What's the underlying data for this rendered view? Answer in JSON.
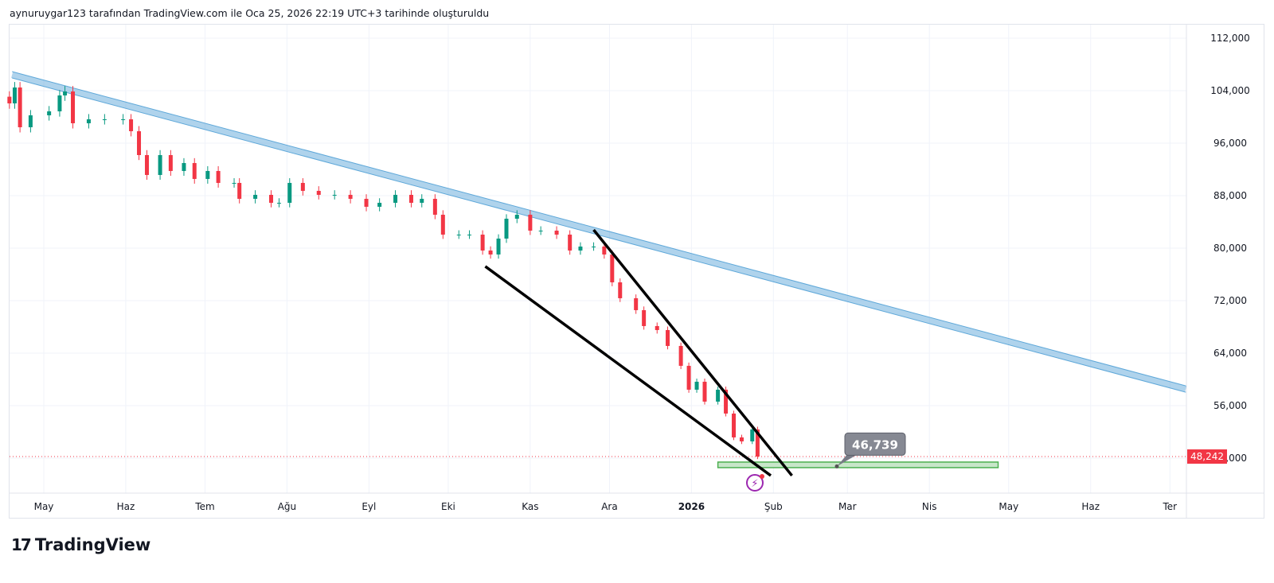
{
  "header": {
    "caption": "aynuruygar123 tarafından TradingView.com ile Oca 25, 2026 22:19 UTC+3 tarihinde oluşturuldu"
  },
  "branding": {
    "logo_text": "TradingView",
    "logo_mark": "17"
  },
  "colors": {
    "up": "#089981",
    "down": "#f23645",
    "channel": "#5fa8d9",
    "zone": "#4caf50",
    "grid": "#f0f3fa"
  },
  "chart_data": {
    "type": "candlestick",
    "x_origin": "2025-05-01",
    "x_unit": "days",
    "ylim": [
      40000,
      116000
    ],
    "y_ticks": [
      "112,000",
      "104,000",
      "96,000",
      "88,000",
      "80,000",
      "72,000",
      "64,000",
      "56,000",
      "48,000"
    ],
    "y_tick_values": [
      112000,
      104000,
      96000,
      88000,
      80000,
      72000,
      64000,
      56000,
      48000
    ],
    "x_ticks": [
      {
        "label": "May",
        "day": 0
      },
      {
        "label": "Haz",
        "day": 31
      },
      {
        "label": "Tem",
        "day": 61
      },
      {
        "label": "Ağu",
        "day": 92
      },
      {
        "label": "Eyl",
        "day": 123
      },
      {
        "label": "Eki",
        "day": 153
      },
      {
        "label": "Kas",
        "day": 184
      },
      {
        "label": "Ara",
        "day": 214
      },
      {
        "label": "2026",
        "day": 245
      },
      {
        "label": "Şub",
        "day": 276
      },
      {
        "label": "Mar",
        "day": 304
      },
      {
        "label": "Nis",
        "day": 335
      },
      {
        "label": "May",
        "day": 365
      },
      {
        "label": "Haz",
        "day": 396
      },
      {
        "label": "Ter",
        "day": 426
      }
    ],
    "closes": [
      [
        -13,
        102061
      ],
      [
        -11,
        104485
      ],
      [
        -9,
        98425
      ],
      [
        -5,
        100244
      ],
      [
        2,
        100850
      ],
      [
        6,
        103274
      ],
      [
        8,
        103880
      ],
      [
        11,
        99032
      ],
      [
        17,
        99638
      ],
      [
        23,
        99638
      ],
      [
        30,
        99638
      ],
      [
        33,
        97820
      ],
      [
        36,
        94184
      ],
      [
        39,
        91154
      ],
      [
        44,
        94184
      ],
      [
        48,
        91760
      ],
      [
        53,
        92972
      ],
      [
        57,
        90548
      ],
      [
        62,
        91760
      ],
      [
        66,
        89942
      ],
      [
        72,
        89942
      ],
      [
        74,
        87518
      ],
      [
        80,
        88124
      ],
      [
        86,
        86912
      ],
      [
        89,
        86912
      ],
      [
        93,
        89942
      ],
      [
        98,
        88730
      ],
      [
        104,
        88124
      ],
      [
        110,
        88124
      ],
      [
        116,
        87518
      ],
      [
        122,
        86306
      ],
      [
        127,
        86912
      ],
      [
        133,
        88124
      ],
      [
        139,
        86912
      ],
      [
        143,
        87518
      ],
      [
        148,
        85094
      ],
      [
        151,
        82064
      ],
      [
        157,
        82064
      ],
      [
        161,
        82064
      ],
      [
        166,
        79640
      ],
      [
        169,
        79034
      ],
      [
        172,
        81458
      ],
      [
        175,
        84488
      ],
      [
        179,
        85094
      ],
      [
        184,
        82670
      ],
      [
        188,
        82670
      ],
      [
        194,
        82064
      ],
      [
        199,
        79640
      ],
      [
        203,
        80246
      ],
      [
        208,
        80246
      ],
      [
        212,
        79034
      ],
      [
        215,
        74792
      ],
      [
        218,
        72368
      ],
      [
        224,
        70550
      ],
      [
        227,
        68126
      ],
      [
        232,
        67520
      ],
      [
        236,
        65096
      ],
      [
        241,
        62066
      ],
      [
        244,
        58430
      ],
      [
        247,
        59642
      ],
      [
        250,
        56612
      ],
      [
        255,
        58430
      ],
      [
        258,
        54794
      ],
      [
        261,
        51158
      ],
      [
        264,
        50552
      ],
      [
        268,
        52370
      ],
      [
        270,
        48242
      ]
    ],
    "last_price": {
      "label": "48,242",
      "value": 48242
    },
    "drawings": {
      "channel": {
        "from": [
          -12,
          106425
        ],
        "to": [
          432,
          58526
        ]
      },
      "wedge_lower": {
        "from": [
          167,
          77216
        ],
        "to": [
          275,
          45340
        ]
      },
      "wedge_upper": {
        "from": [
          208,
          82790
        ],
        "to": [
          283,
          45340
        ]
      },
      "support_zone": {
        "from": [
          255,
          47400
        ],
        "to": [
          361,
          46552
        ]
      },
      "price_label": {
        "text": "46,739",
        "anchor": [
          300,
          46739
        ]
      }
    }
  }
}
